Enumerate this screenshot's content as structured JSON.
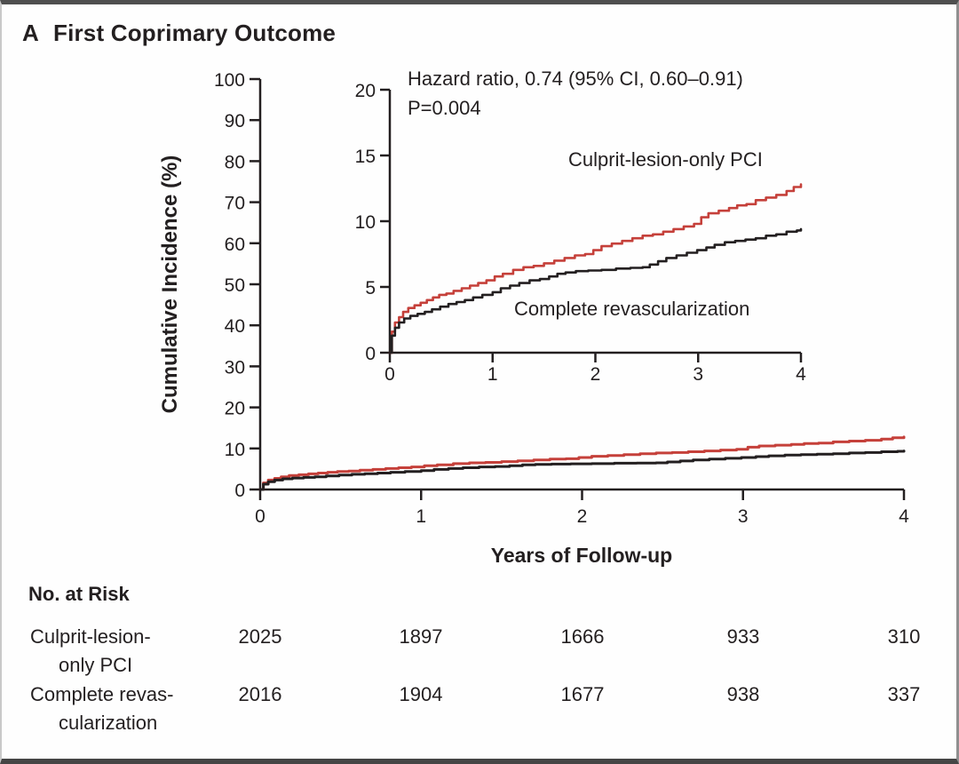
{
  "panel": {
    "letter": "A",
    "title": "First Coprimary Outcome"
  },
  "annotation": {
    "hazard_ratio": "Hazard ratio, 0.74 (95% CI, 0.60–0.91)",
    "p_value": "P=0.004"
  },
  "colors": {
    "ink": "#231f20",
    "red": "#c5403a",
    "black_series": "#231f20",
    "border_dark": "#4a4a4a",
    "border_light": "#c9c9c9"
  },
  "chart_data": {
    "type": "line",
    "title": "First Coprimary Outcome",
    "xlabel": "Years of Follow-up",
    "ylabel": "Cumulative Incidence (%)",
    "legend_position": "inline-labels",
    "grid": false,
    "main_axis": {
      "xlim": [
        0,
        4
      ],
      "ylim": [
        0,
        100
      ],
      "xticks": [
        0,
        1,
        2,
        3,
        4
      ],
      "yticks": [
        0,
        10,
        20,
        30,
        40,
        50,
        60,
        70,
        80,
        90,
        100
      ]
    },
    "inset_axis": {
      "xlim": [
        0,
        4
      ],
      "ylim": [
        0,
        20
      ],
      "xticks": [
        0,
        1,
        2,
        3,
        4
      ],
      "yticks": [
        0,
        5,
        10,
        15,
        20
      ]
    },
    "series": [
      {
        "name": "Culprit-lesion-only PCI",
        "color": "#c5403a",
        "end_value_pct": 12.8,
        "x": [
          0,
          0.02,
          0.05,
          0.09,
          0.13,
          0.18,
          0.24,
          0.3,
          0.36,
          0.42,
          0.48,
          0.55,
          0.62,
          0.7,
          0.78,
          0.86,
          0.94,
          1.02,
          1.1,
          1.2,
          1.3,
          1.4,
          1.5,
          1.6,
          1.7,
          1.8,
          1.9,
          1.98,
          2.06,
          2.16,
          2.26,
          2.36,
          2.46,
          2.56,
          2.66,
          2.76,
          2.86,
          2.96,
          3.03,
          3.1,
          3.2,
          3.3,
          3.38,
          3.47,
          3.56,
          3.66,
          3.76,
          3.86,
          3.93,
          4
        ],
        "y": [
          0,
          1.6,
          2.3,
          2.7,
          3.1,
          3.4,
          3.6,
          3.8,
          4,
          4.2,
          4.4,
          4.5,
          4.7,
          4.9,
          5.1,
          5.3,
          5.5,
          5.8,
          6,
          6.3,
          6.5,
          6.6,
          6.8,
          7,
          7.2,
          7.4,
          7.5,
          7.8,
          8.1,
          8.3,
          8.5,
          8.7,
          8.9,
          9,
          9.2,
          9.4,
          9.6,
          9.8,
          10.3,
          10.6,
          10.8,
          11,
          11.2,
          11.3,
          11.6,
          11.8,
          12,
          12.3,
          12.6,
          12.8
        ]
      },
      {
        "name": "Complete revascularization",
        "color": "#231f20",
        "end_value_pct": 9.4,
        "x": [
          0,
          0.02,
          0.05,
          0.09,
          0.14,
          0.2,
          0.27,
          0.34,
          0.41,
          0.49,
          0.57,
          0.65,
          0.73,
          0.81,
          0.9,
          1,
          1.08,
          1.17,
          1.26,
          1.36,
          1.46,
          1.55,
          1.63,
          1.71,
          1.81,
          1.93,
          2.06,
          2.2,
          2.34,
          2.46,
          2.53,
          2.61,
          2.69,
          2.79,
          2.89,
          2.99,
          3.08,
          3.16,
          3.26,
          3.36,
          3.46,
          3.56,
          3.66,
          3.76,
          3.86,
          3.96,
          4
        ],
        "y": [
          0,
          1.3,
          1.9,
          2.3,
          2.6,
          2.8,
          2.95,
          3.1,
          3.3,
          3.5,
          3.7,
          3.85,
          4,
          4.2,
          4.4,
          4.6,
          4.9,
          5.1,
          5.3,
          5.5,
          5.6,
          5.8,
          6,
          6.1,
          6.2,
          6.25,
          6.3,
          6.4,
          6.45,
          6.5,
          6.7,
          6.95,
          7.2,
          7.4,
          7.6,
          7.8,
          8,
          8.2,
          8.4,
          8.5,
          8.6,
          8.7,
          8.9,
          9,
          9.2,
          9.3,
          9.4
        ]
      }
    ]
  },
  "risk_table": {
    "header": "No. at Risk",
    "timepoints": [
      0,
      1,
      2,
      3,
      4
    ],
    "rows": [
      {
        "label_line1": "Culprit-lesion-",
        "label_line2": "only PCI",
        "values": [
          "2025",
          "1897",
          "1666",
          "933",
          "310"
        ]
      },
      {
        "label_line1": "Complete revas-",
        "label_line2": "cularization",
        "values": [
          "2016",
          "1904",
          "1677",
          "938",
          "337"
        ]
      }
    ]
  }
}
